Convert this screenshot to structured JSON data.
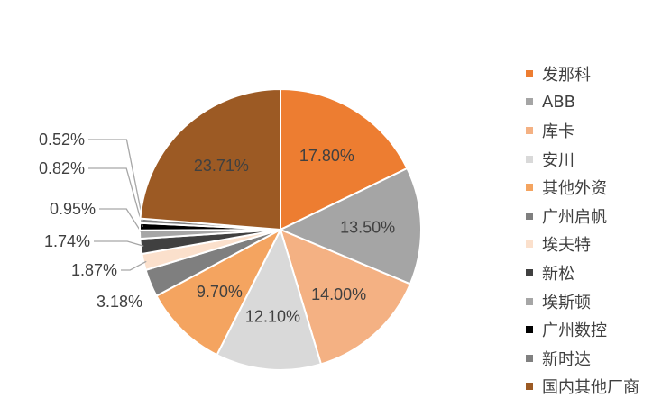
{
  "chart_data": {
    "type": "pie",
    "start_angle_deg": 0,
    "direction": "clockwise",
    "legend_position": "right",
    "slices": [
      {
        "name": "发那科",
        "value": 17.8,
        "label": "17.80%",
        "color": "#ED7D31",
        "label_position": "inside"
      },
      {
        "name": "ABB",
        "value": 13.5,
        "label": "13.50%",
        "color": "#A5A5A5",
        "label_position": "inside"
      },
      {
        "name": "库卡",
        "value": 14.0,
        "label": "14.00%",
        "color": "#F4B183",
        "label_position": "inside"
      },
      {
        "name": "安川",
        "value": 12.1,
        "label": "12.10%",
        "color": "#D9D9D9",
        "label_position": "inside"
      },
      {
        "name": "其他外资",
        "value": 9.7,
        "label": "9.70%",
        "color": "#F4A460",
        "label_position": "inside"
      },
      {
        "name": "广州启帆",
        "value": 3.18,
        "label": "3.18%",
        "color": "#7F7F7F",
        "label_position": "outside"
      },
      {
        "name": "埃夫特",
        "value": 1.87,
        "label": "1.87%",
        "color": "#FBE0CC",
        "label_position": "outside"
      },
      {
        "name": "新松",
        "value": 1.74,
        "label": "1.74%",
        "color": "#404040",
        "label_position": "outside"
      },
      {
        "name": "埃斯顿",
        "value": 0.95,
        "label": "0.95%",
        "color": "#A6A6A6",
        "label_position": "outside"
      },
      {
        "name": "广州数控",
        "value": 0.82,
        "label": "0.82%",
        "color": "#000000",
        "label_position": "outside"
      },
      {
        "name": "新时达",
        "value": 0.52,
        "label": "0.52%",
        "color": "#808080",
        "label_position": "outside"
      },
      {
        "name": "国内其他厂商",
        "value": 23.71,
        "label": "23.71%",
        "color": "#9C5A24",
        "label_position": "inside"
      }
    ]
  }
}
